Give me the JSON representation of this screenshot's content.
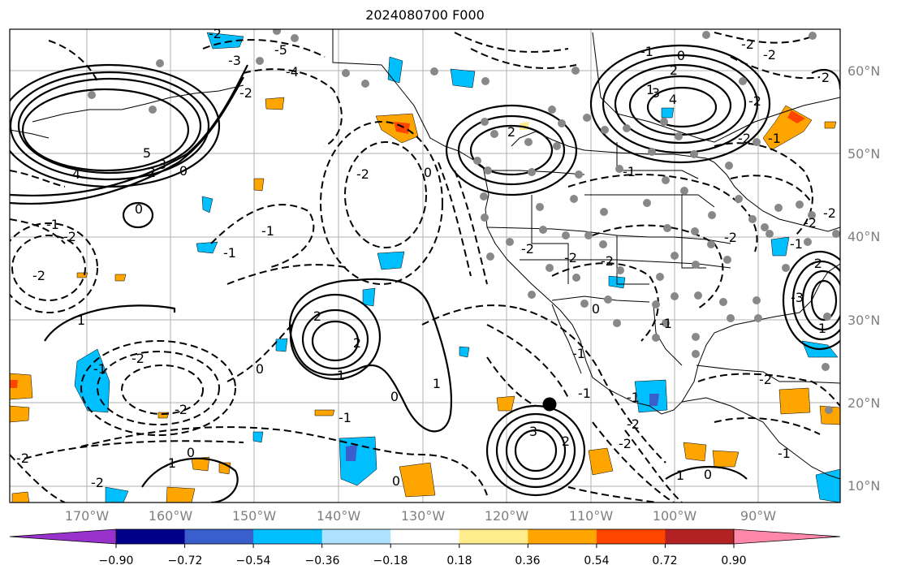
{
  "title": "2024080700 F000",
  "latitude_labels": [
    "60°N",
    "50°N",
    "40°N",
    "30°N",
    "20°N",
    "10°N"
  ],
  "longitude_labels": [
    "170°W",
    "160°W",
    "150°W",
    "140°W",
    "130°W",
    "120°W",
    "110°W",
    "100°W",
    "90°W"
  ],
  "colorbar": {
    "ticks": [
      "−0.90",
      "−0.72",
      "−0.54",
      "−0.36",
      "−0.18",
      "0.18",
      "0.36",
      "0.54",
      "0.72",
      "0.90"
    ],
    "colors": [
      "#9932cc",
      "#00008b",
      "#3a5fcd",
      "#00bfff",
      "#aee2ff",
      "#ffffff",
      "#ffec8b",
      "#ffa500",
      "#ff4500",
      "#b22222",
      "#ff88aa"
    ]
  },
  "contour_labels": {
    "solid": [
      "5",
      "4",
      "3",
      "2",
      "0",
      "0",
      "2",
      "1",
      "2",
      "2",
      "1",
      "1",
      "0",
      "3",
      "1",
      "1",
      "0",
      "0",
      "2",
      "0",
      "1",
      "3",
      "4",
      "2",
      "0",
      "2",
      "0",
      "1"
    ],
    "dashed": [
      "-5",
      "-4",
      "-3",
      "-2",
      "-2",
      "-1",
      "-2",
      "-2",
      "-1",
      "-2",
      "-2",
      "-1",
      "-2",
      "-1",
      "0",
      "-2",
      "-2",
      "-2",
      "-2",
      "-1",
      "-2",
      "-2",
      "-1",
      "-2",
      "-2",
      "-1",
      "-2",
      "-1",
      "-2",
      "-3",
      "-2",
      "-2",
      "-1",
      "-1",
      "-1",
      "-2",
      "-1",
      "-2",
      "-2",
      "0",
      "-1",
      "-1",
      "-2"
    ]
  },
  "marker": {
    "label": "storm-center",
    "color": "#000000"
  },
  "station_color": "#888888"
}
